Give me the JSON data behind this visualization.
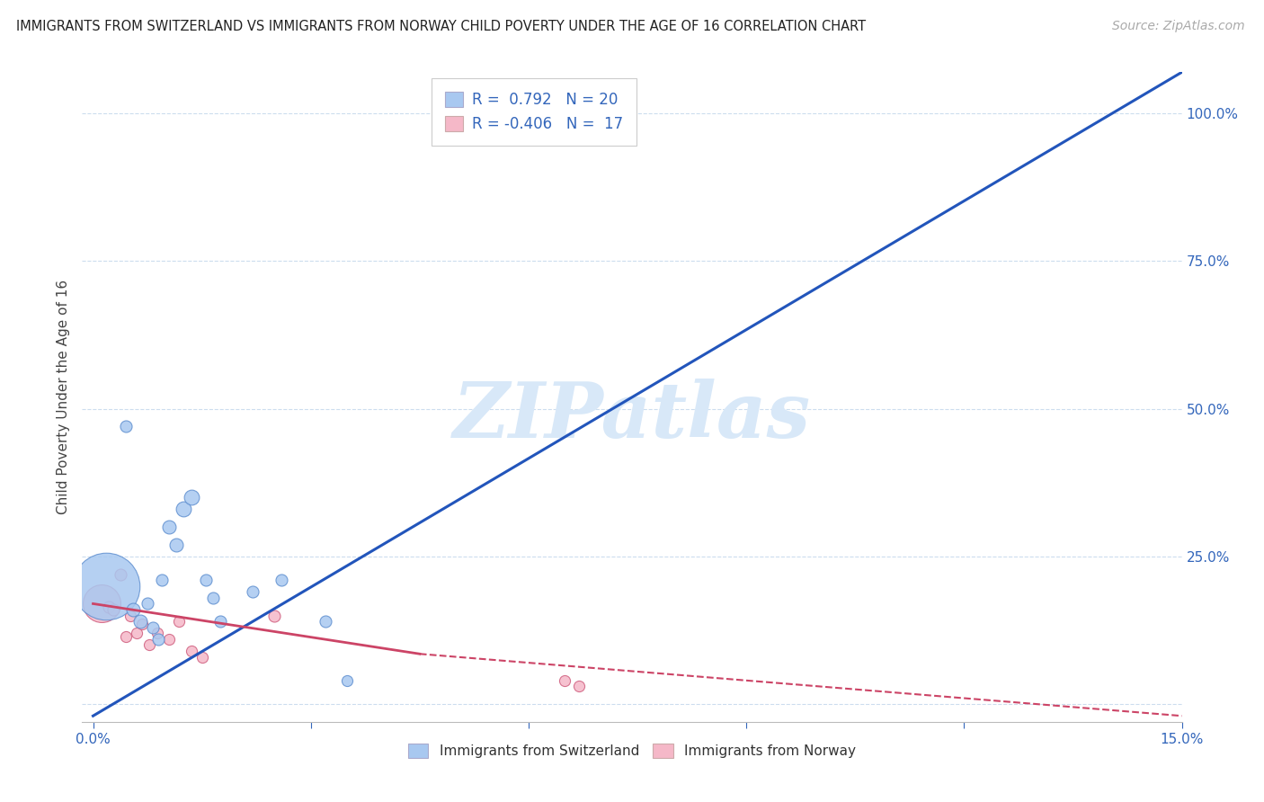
{
  "title": "IMMIGRANTS FROM SWITZERLAND VS IMMIGRANTS FROM NORWAY CHILD POVERTY UNDER THE AGE OF 16 CORRELATION CHART",
  "source": "Source: ZipAtlas.com",
  "ylabel": "Child Poverty Under the Age of 16",
  "xlim": [
    -0.15,
    15.0
  ],
  "ylim": [
    -3.0,
    107.0
  ],
  "switzerland_R": 0.792,
  "switzerland_N": 20,
  "norway_R": -0.406,
  "norway_N": 17,
  "switzerland_color": "#A8C8F0",
  "switzerland_edge": "#6090D0",
  "norway_color": "#F5B8C8",
  "norway_edge": "#D06080",
  "switzerland_line_color": "#2255BB",
  "norway_line_color": "#CC4466",
  "watermark_color": "#D8E8F8",
  "swiss_line_x0": 0.0,
  "swiss_line_y0": -2.0,
  "swiss_line_x1": 15.0,
  "swiss_line_y1": 107.0,
  "norway_solid_x0": 0.0,
  "norway_solid_y0": 17.0,
  "norway_solid_x1": 4.5,
  "norway_solid_y1": 8.5,
  "norway_dash_x0": 4.5,
  "norway_dash_y0": 8.5,
  "norway_dash_x1": 15.0,
  "norway_dash_y1": -2.0,
  "swiss_points": [
    [
      0.18,
      20.0,
      80
    ],
    [
      0.45,
      47.0,
      14
    ],
    [
      0.55,
      16.0,
      16
    ],
    [
      0.65,
      14.0,
      16
    ],
    [
      0.75,
      17.0,
      14
    ],
    [
      0.82,
      13.0,
      14
    ],
    [
      0.9,
      11.0,
      14
    ],
    [
      0.95,
      21.0,
      14
    ],
    [
      1.05,
      30.0,
      16
    ],
    [
      1.15,
      27.0,
      16
    ],
    [
      1.25,
      33.0,
      18
    ],
    [
      1.35,
      35.0,
      18
    ],
    [
      1.55,
      21.0,
      14
    ],
    [
      1.65,
      18.0,
      14
    ],
    [
      1.75,
      14.0,
      14
    ],
    [
      2.2,
      19.0,
      14
    ],
    [
      2.6,
      21.0,
      14
    ],
    [
      3.2,
      14.0,
      14
    ],
    [
      3.5,
      4.0,
      13
    ],
    [
      6.7,
      97.0,
      14
    ]
  ],
  "norway_points": [
    [
      0.12,
      17.0,
      45
    ],
    [
      0.22,
      16.5,
      14
    ],
    [
      0.28,
      16.0,
      14
    ],
    [
      0.38,
      22.0,
      14
    ],
    [
      0.45,
      11.5,
      13
    ],
    [
      0.52,
      15.0,
      13
    ],
    [
      0.6,
      12.0,
      13
    ],
    [
      0.68,
      13.5,
      13
    ],
    [
      0.78,
      10.0,
      13
    ],
    [
      0.88,
      12.0,
      13
    ],
    [
      1.05,
      11.0,
      13
    ],
    [
      1.18,
      14.0,
      13
    ],
    [
      1.35,
      9.0,
      13
    ],
    [
      1.5,
      8.0,
      13
    ],
    [
      2.5,
      15.0,
      14
    ],
    [
      6.5,
      4.0,
      13
    ],
    [
      6.7,
      3.0,
      13
    ]
  ]
}
